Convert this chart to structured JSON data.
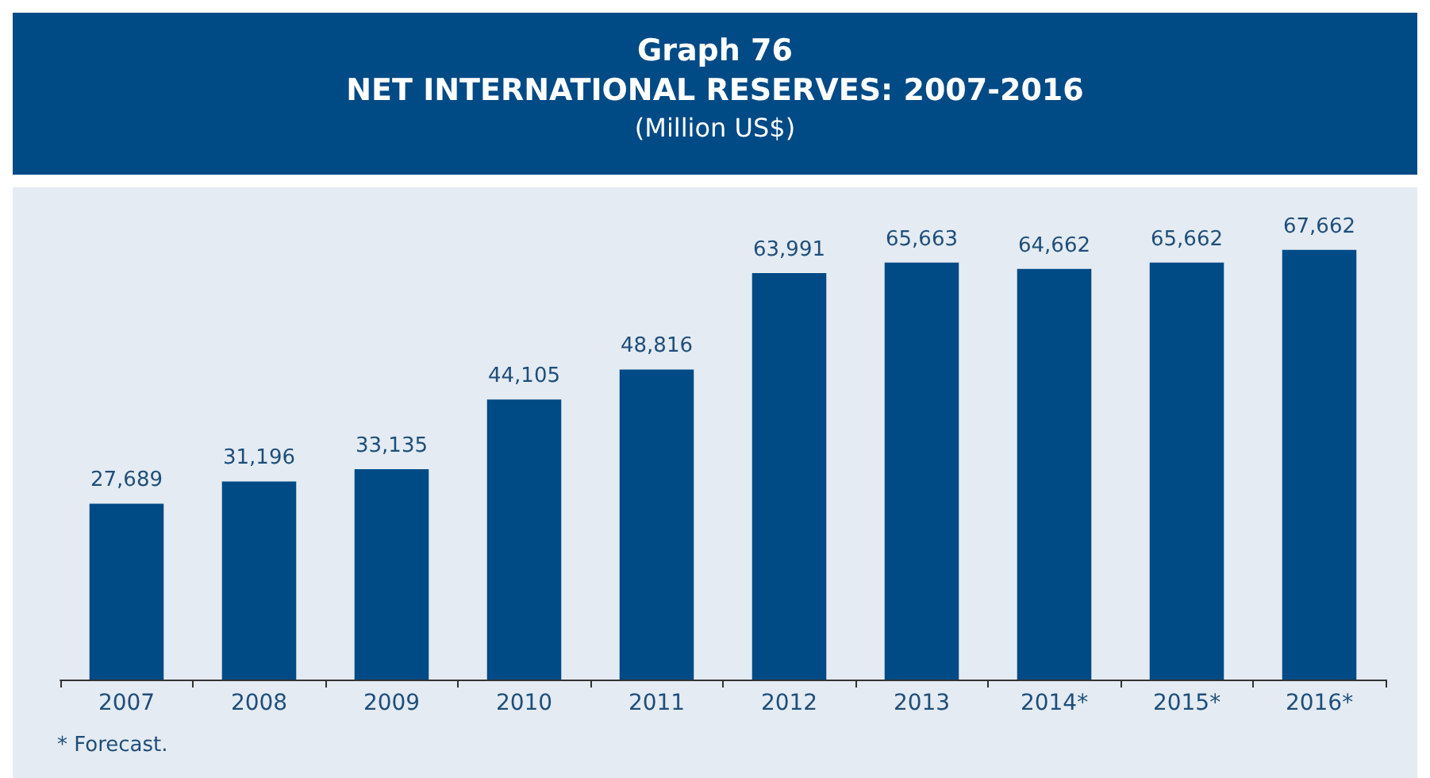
{
  "chart_data": {
    "type": "bar",
    "title": "Graph 76\nNET INTERNATIONAL RESERVES: 2007-2016",
    "subtitle": "(Million US$)",
    "categories": [
      "2007",
      "2008",
      "2009",
      "2010",
      "2011",
      "2012",
      "2013",
      "2014*",
      "2015*",
      "2016*"
    ],
    "values": [
      27689,
      31196,
      33135,
      44105,
      48816,
      63991,
      65663,
      64662,
      65662,
      67662
    ],
    "value_labels": [
      "27,689",
      "31,196",
      "33,135",
      "44,105",
      "48,816",
      "63,991",
      "65,663",
      "64,662",
      "65,662",
      "67,662"
    ],
    "color": "#004a85",
    "annotations": [
      "* Forecast."
    ]
  }
}
